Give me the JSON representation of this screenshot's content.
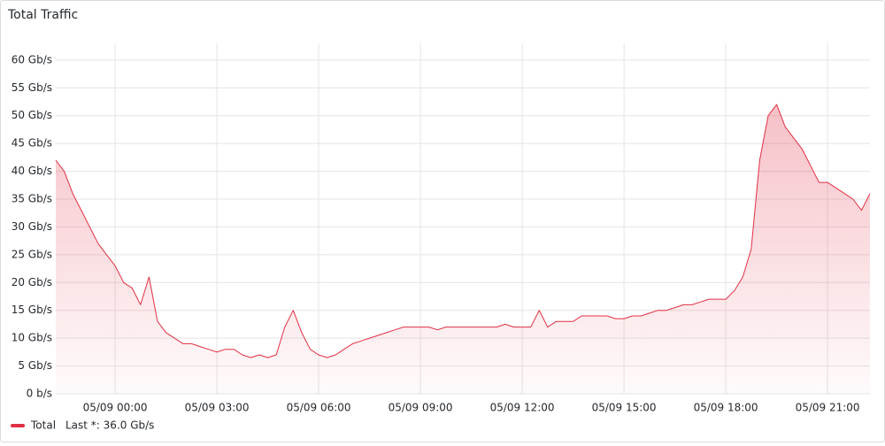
{
  "chart_data": {
    "type": "line",
    "title": "Total Traffic",
    "x": [
      "05/08 22:15",
      "05/08 22:30",
      "05/08 22:45",
      "05/08 23:00",
      "05/08 23:15",
      "05/08 23:30",
      "05/08 23:45",
      "05/09 00:00",
      "05/09 00:15",
      "05/09 00:30",
      "05/09 00:45",
      "05/09 01:00",
      "05/09 01:15",
      "05/09 01:30",
      "05/09 01:45",
      "05/09 02:00",
      "05/09 02:15",
      "05/09 02:30",
      "05/09 02:45",
      "05/09 03:00",
      "05/09 03:15",
      "05/09 03:30",
      "05/09 03:45",
      "05/09 04:00",
      "05/09 04:15",
      "05/09 04:30",
      "05/09 04:45",
      "05/09 05:00",
      "05/09 05:15",
      "05/09 05:30",
      "05/09 05:45",
      "05/09 06:00",
      "05/09 06:15",
      "05/09 06:30",
      "05/09 06:45",
      "05/09 07:00",
      "05/09 07:15",
      "05/09 07:30",
      "05/09 07:45",
      "05/09 08:00",
      "05/09 08:15",
      "05/09 08:30",
      "05/09 08:45",
      "05/09 09:00",
      "05/09 09:15",
      "05/09 09:30",
      "05/09 09:45",
      "05/09 10:00",
      "05/09 10:15",
      "05/09 10:30",
      "05/09 10:45",
      "05/09 11:00",
      "05/09 11:15",
      "05/09 11:30",
      "05/09 11:45",
      "05/09 12:00",
      "05/09 12:15",
      "05/09 12:30",
      "05/09 12:45",
      "05/09 13:00",
      "05/09 13:15",
      "05/09 13:30",
      "05/09 13:45",
      "05/09 14:00",
      "05/09 14:15",
      "05/09 14:30",
      "05/09 14:45",
      "05/09 15:00",
      "05/09 15:15",
      "05/09 15:30",
      "05/09 15:45",
      "05/09 16:00",
      "05/09 16:15",
      "05/09 16:30",
      "05/09 16:45",
      "05/09 17:00",
      "05/09 17:15",
      "05/09 17:30",
      "05/09 17:45",
      "05/09 18:00",
      "05/09 18:15",
      "05/09 18:30",
      "05/09 18:45",
      "05/09 19:00",
      "05/09 19:15",
      "05/09 19:30",
      "05/09 19:45",
      "05/09 20:00",
      "05/09 20:15",
      "05/09 20:30",
      "05/09 20:45",
      "05/09 21:00",
      "05/09 21:15",
      "05/09 21:30",
      "05/09 21:45",
      "05/09 22:00",
      "05/09 22:15"
    ],
    "series": [
      {
        "name": "Total",
        "color": "#e02f44",
        "values": [
          42,
          40,
          36,
          33,
          30,
          27,
          25,
          23,
          20,
          19,
          16,
          21,
          13,
          11,
          10,
          9,
          9,
          8.5,
          8,
          7.5,
          8,
          8,
          7,
          6.5,
          7,
          6.5,
          7,
          12,
          15,
          11,
          8,
          7,
          6.5,
          7,
          8,
          9,
          9.5,
          10,
          10.5,
          11,
          11.5,
          12,
          12,
          12,
          12,
          11.5,
          12,
          12,
          12,
          12,
          12,
          12,
          12,
          12.5,
          12,
          12,
          12,
          15,
          12,
          13,
          13,
          13,
          14,
          14,
          14,
          14,
          13.5,
          13.5,
          14,
          14,
          14.5,
          15,
          15,
          15.5,
          16,
          16,
          16.5,
          17,
          17,
          17,
          18.5,
          21,
          26,
          42,
          50,
          52,
          48,
          46,
          44,
          41,
          38,
          38,
          37,
          36,
          35,
          33,
          36
        ]
      }
    ],
    "legend_stat": "Last *: 36.0 Gb/s",
    "xlim": [
      "05/08 22:15",
      "05/09 22:15"
    ],
    "xticks": [
      "05/09 00:00",
      "05/09 03:00",
      "05/09 06:00",
      "05/09 09:00",
      "05/09 12:00",
      "05/09 15:00",
      "05/09 18:00",
      "05/09 21:00"
    ],
    "ylim": [
      0,
      63
    ],
    "yticks": [
      {
        "value": 0,
        "label": "0 b/s"
      },
      {
        "value": 5,
        "label": "5 Gb/s"
      },
      {
        "value": 10,
        "label": "10 Gb/s"
      },
      {
        "value": 15,
        "label": "15 Gb/s"
      },
      {
        "value": 20,
        "label": "20 Gb/s"
      },
      {
        "value": 25,
        "label": "25 Gb/s"
      },
      {
        "value": 30,
        "label": "30 Gb/s"
      },
      {
        "value": 35,
        "label": "35 Gb/s"
      },
      {
        "value": 40,
        "label": "40 Gb/s"
      },
      {
        "value": 45,
        "label": "45 Gb/s"
      },
      {
        "value": 50,
        "label": "50 Gb/s"
      },
      {
        "value": 55,
        "label": "55 Gb/s"
      },
      {
        "value": 60,
        "label": "60 Gb/s"
      }
    ],
    "grid": true
  }
}
